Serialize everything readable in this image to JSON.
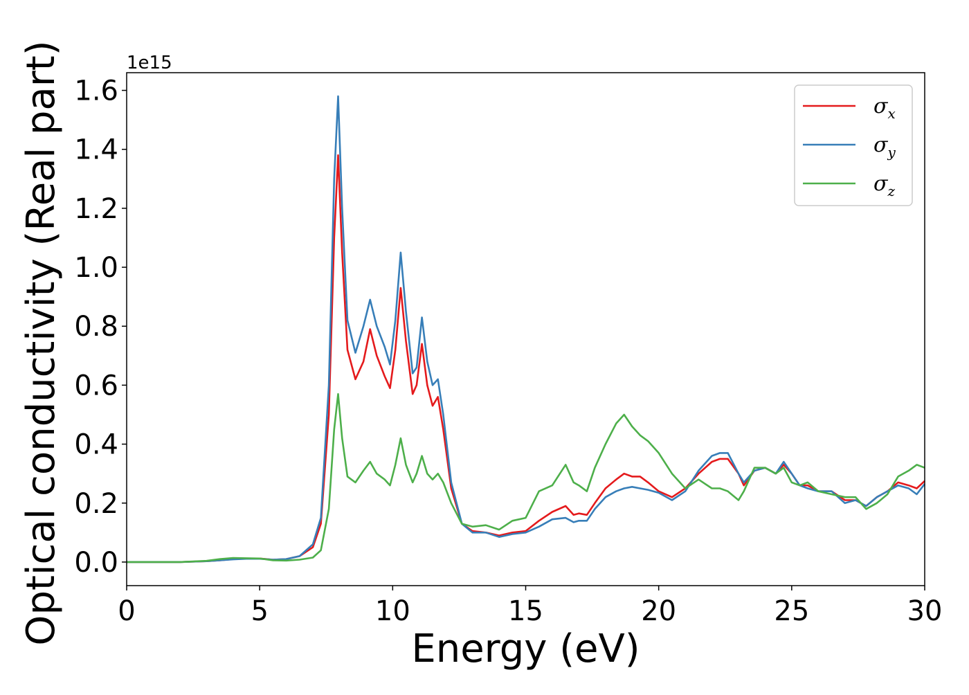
{
  "chart_data": {
    "type": "line",
    "xlabel": "Energy (eV)",
    "ylabel": "Optical conductivity (Real part)",
    "y_offset_label": "1e15",
    "xlim": [
      0,
      30
    ],
    "ylim": [
      -0.08,
      1.66
    ],
    "x_ticks": [
      0,
      5,
      10,
      15,
      20,
      25,
      30
    ],
    "x_tick_labels": [
      "0",
      "5",
      "10",
      "15",
      "20",
      "25",
      "30"
    ],
    "y_ticks": [
      0.0,
      0.2,
      0.4,
      0.6,
      0.8,
      1.0,
      1.2,
      1.4,
      1.6
    ],
    "y_tick_labels": [
      "0.0",
      "0.2",
      "0.4",
      "0.6",
      "0.8",
      "1.0",
      "1.2",
      "1.4",
      "1.6"
    ],
    "grid": false,
    "legend_position": "top-right",
    "x": [
      0,
      1,
      2,
      3,
      3.5,
      4,
      4.5,
      5,
      5.5,
      6,
      6.5,
      7,
      7.3,
      7.6,
      7.8,
      7.95,
      8.1,
      8.3,
      8.6,
      8.9,
      9.15,
      9.4,
      9.7,
      9.9,
      10.1,
      10.3,
      10.5,
      10.75,
      10.9,
      11.1,
      11.3,
      11.5,
      11.7,
      11.9,
      12.2,
      12.6,
      13.0,
      13.5,
      14.0,
      14.5,
      15.0,
      15.5,
      16.0,
      16.5,
      16.8,
      17.0,
      17.3,
      17.6,
      18.0,
      18.4,
      18.7,
      19.0,
      19.3,
      19.6,
      20.0,
      20.5,
      21.0,
      21.5,
      22.0,
      22.3,
      22.6,
      23.0,
      23.2,
      23.6,
      24.0,
      24.4,
      24.7,
      25.0,
      25.3,
      25.6,
      26.0,
      26.5,
      27.0,
      27.4,
      27.8,
      28.2,
      28.6,
      29.0,
      29.4,
      29.7,
      30.0
    ],
    "series": [
      {
        "name": "σx",
        "color": "#e41a1c",
        "values": [
          0.0,
          0.0,
          0.0,
          0.003,
          0.006,
          0.01,
          0.012,
          0.012,
          0.008,
          0.01,
          0.02,
          0.05,
          0.13,
          0.5,
          1.1,
          1.38,
          1.05,
          0.72,
          0.62,
          0.68,
          0.79,
          0.7,
          0.63,
          0.59,
          0.72,
          0.93,
          0.75,
          0.57,
          0.6,
          0.74,
          0.6,
          0.53,
          0.56,
          0.45,
          0.25,
          0.13,
          0.105,
          0.1,
          0.09,
          0.1,
          0.105,
          0.14,
          0.17,
          0.19,
          0.16,
          0.165,
          0.16,
          0.2,
          0.25,
          0.28,
          0.3,
          0.29,
          0.29,
          0.27,
          0.24,
          0.22,
          0.25,
          0.3,
          0.34,
          0.35,
          0.35,
          0.3,
          0.26,
          0.31,
          0.32,
          0.3,
          0.33,
          0.3,
          0.26,
          0.26,
          0.24,
          0.24,
          0.21,
          0.21,
          0.19,
          0.22,
          0.24,
          0.27,
          0.26,
          0.25,
          0.275
        ]
      },
      {
        "name": "σy",
        "color": "#377eb8",
        "values": [
          0.0,
          0.0,
          0.0,
          0.003,
          0.006,
          0.009,
          0.011,
          0.011,
          0.008,
          0.01,
          0.02,
          0.06,
          0.15,
          0.6,
          1.3,
          1.58,
          1.2,
          0.82,
          0.71,
          0.8,
          0.89,
          0.8,
          0.73,
          0.67,
          0.82,
          1.05,
          0.85,
          0.64,
          0.66,
          0.83,
          0.68,
          0.6,
          0.62,
          0.5,
          0.27,
          0.13,
          0.1,
          0.1,
          0.085,
          0.095,
          0.1,
          0.12,
          0.145,
          0.15,
          0.135,
          0.14,
          0.14,
          0.18,
          0.22,
          0.24,
          0.25,
          0.255,
          0.25,
          0.245,
          0.235,
          0.21,
          0.24,
          0.31,
          0.36,
          0.37,
          0.37,
          0.3,
          0.27,
          0.31,
          0.32,
          0.3,
          0.34,
          0.3,
          0.26,
          0.25,
          0.24,
          0.24,
          0.2,
          0.21,
          0.19,
          0.22,
          0.24,
          0.26,
          0.25,
          0.23,
          0.265
        ]
      },
      {
        "name": "σz",
        "color": "#4daf4a",
        "values": [
          0.0,
          0.0,
          0.0,
          0.004,
          0.01,
          0.014,
          0.013,
          0.012,
          0.006,
          0.005,
          0.008,
          0.015,
          0.04,
          0.18,
          0.45,
          0.57,
          0.42,
          0.29,
          0.27,
          0.31,
          0.34,
          0.3,
          0.28,
          0.26,
          0.33,
          0.42,
          0.33,
          0.27,
          0.3,
          0.36,
          0.3,
          0.28,
          0.3,
          0.27,
          0.2,
          0.13,
          0.12,
          0.125,
          0.11,
          0.14,
          0.15,
          0.24,
          0.26,
          0.33,
          0.27,
          0.26,
          0.24,
          0.32,
          0.4,
          0.47,
          0.5,
          0.46,
          0.43,
          0.41,
          0.37,
          0.3,
          0.25,
          0.28,
          0.25,
          0.25,
          0.24,
          0.21,
          0.24,
          0.32,
          0.32,
          0.3,
          0.32,
          0.27,
          0.26,
          0.27,
          0.24,
          0.23,
          0.22,
          0.22,
          0.18,
          0.2,
          0.23,
          0.29,
          0.31,
          0.33,
          0.32
        ]
      }
    ]
  }
}
